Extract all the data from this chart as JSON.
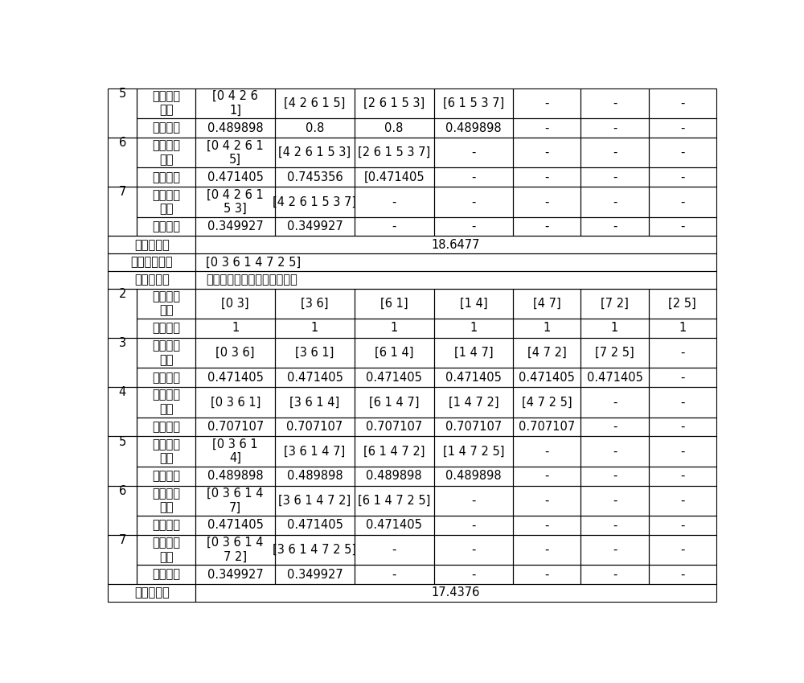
{
  "background_color": "#ffffff",
  "border_color": "#000000",
  "col_props": [
    0.042,
    0.085,
    0.115,
    0.115,
    0.115,
    0.115,
    0.098,
    0.098,
    0.098
  ],
  "upper_rows": [
    [
      "5",
      "时隙分配\n组合",
      [
        "[0 4 2 6\n1]",
        "[4 2 6 1 5]",
        "[2 6 1 5 3]",
        "[6 1 5 3 7]",
        "-",
        "-",
        "-"
      ]
    ],
    [
      "",
      "均方误差",
      [
        "0.489898",
        "0.8",
        "0.8",
        "0.489898",
        "-",
        "-",
        "-"
      ]
    ],
    [
      "6",
      "时隙分配\n组合",
      [
        "[0 4 2 6 1\n5]",
        "[4 2 6 1 5 3]",
        "[2 6 1 5 3 7]",
        "-",
        "-",
        "-",
        "-"
      ]
    ],
    [
      "",
      "均方误差",
      [
        "0.471405",
        "0.745356",
        "[0.471405",
        "-",
        "-",
        "-",
        "-"
      ]
    ],
    [
      "7",
      "时隙分配\n组合",
      [
        "[0 4 2 6 1\n5 3]",
        "[4 2 6 1 5 3 7]",
        "-",
        "-",
        "-",
        "-",
        "-"
      ]
    ],
    [
      "",
      "均方误差",
      [
        "0.349927",
        "0.349927",
        "-",
        "-",
        "-",
        "-",
        "-"
      ]
    ]
  ],
  "summary1": "18.6477",
  "mapping": "[0 3 6 1 4 7 2 5]",
  "header_col1": "分配时隙数",
  "header_col2": "各种时隙分配组合的均方误差",
  "lower_rows": [
    [
      "2",
      "时隙分配\n组合",
      [
        "[0 3]",
        "[3 6]",
        "[6 1]",
        "[1 4]",
        "[4 7]",
        "[7 2]",
        "[2 5]"
      ]
    ],
    [
      "",
      "均方误差",
      [
        "1",
        "1",
        "1",
        "1",
        "1",
        "1",
        "1"
      ]
    ],
    [
      "3",
      "时隙分配\n组合",
      [
        "[0 3 6]",
        "[3 6 1]",
        "[6 1 4]",
        "[1 4 7]",
        "[4 7 2]",
        "[7 2 5]",
        "-"
      ]
    ],
    [
      "",
      "均方误差",
      [
        "0.471405",
        "0.471405",
        "0.471405",
        "0.471405",
        "0.471405",
        "0.471405",
        "-"
      ]
    ],
    [
      "4",
      "时隙分配\n组合",
      [
        "[0 3 6 1]",
        "[3 6 1 4]",
        "[6 1 4 7]",
        "[1 4 7 2]",
        "[4 7 2 5]",
        "-",
        "-"
      ]
    ],
    [
      "",
      "均方误差",
      [
        "0.707107",
        "0.707107",
        "0.707107",
        "0.707107",
        "0.707107",
        "-",
        "-"
      ]
    ],
    [
      "5",
      "时隙分配\n组合",
      [
        "[0 3 6 1\n4]",
        "[3 6 1 4 7]",
        "[6 1 4 7 2]",
        "[1 4 7 2 5]",
        "-",
        "-",
        "-"
      ]
    ],
    [
      "",
      "均方误差",
      [
        "0.489898",
        "0.489898",
        "0.489898",
        "0.489898",
        "-",
        "-",
        "-"
      ]
    ],
    [
      "6",
      "时隙分配\n组合",
      [
        "[0 3 6 1 4\n7]",
        "[3 6 1 4 7 2]",
        "[6 1 4 7 2 5]",
        "-",
        "-",
        "-",
        "-"
      ]
    ],
    [
      "",
      "均方误差",
      [
        "0.471405",
        "0.471405",
        "0.471405",
        "-",
        "-",
        "-",
        "-"
      ]
    ],
    [
      "7",
      "时隙分配\n组合",
      [
        "[0 3 6 1 4\n7 2]",
        "[3 6 1 4 7 2 5]",
        "-",
        "-",
        "-",
        "-",
        "-"
      ]
    ],
    [
      "",
      "均方误差",
      [
        "0.349927",
        "0.349927",
        "-",
        "-",
        "-",
        "-",
        "-"
      ]
    ]
  ],
  "summary2": "17.4376",
  "label_shijian": "时隙映射方案",
  "label_junfang1": "均方误差和",
  "label_junfang2": "均方误差和"
}
